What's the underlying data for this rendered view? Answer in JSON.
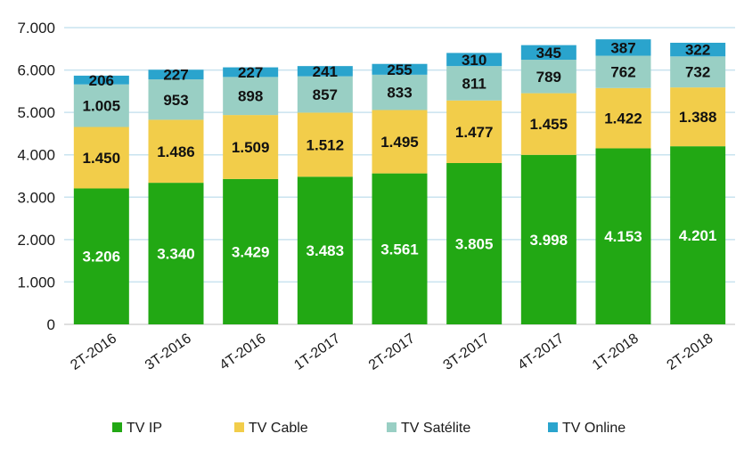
{
  "chart_data": {
    "type": "bar",
    "stacked": true,
    "categories": [
      "2T-2016",
      "3T-2016",
      "4T-2016",
      "1T-2017",
      "2T-2017",
      "3T-2017",
      "4T-2017",
      "1T-2018",
      "2T-2018"
    ],
    "series": [
      {
        "name": "TV IP",
        "color": "#22a814",
        "values": [
          3206,
          3340,
          3429,
          3483,
          3561,
          3805,
          3998,
          4153,
          4201
        ],
        "labels": [
          "3.206",
          "3.340",
          "3.429",
          "3.483",
          "3.561",
          "3.805",
          "3.998",
          "4.153",
          "4.201"
        ],
        "label_color": "#ffffff"
      },
      {
        "name": "TV Cable",
        "color": "#f2cd4a",
        "values": [
          1450,
          1486,
          1509,
          1512,
          1495,
          1477,
          1455,
          1422,
          1388
        ],
        "labels": [
          "1.450",
          "1.486",
          "1.509",
          "1.512",
          "1.495",
          "1.477",
          "1.455",
          "1.422",
          "1.388"
        ],
        "label_color": "#111111"
      },
      {
        "name": "TV Satélite",
        "color": "#99cfc4",
        "values": [
          1005,
          953,
          898,
          857,
          833,
          811,
          789,
          762,
          732
        ],
        "labels": [
          "1.005",
          "953",
          "898",
          "857",
          "833",
          "811",
          "789",
          "762",
          "732"
        ],
        "label_color": "#111111"
      },
      {
        "name": "TV Online",
        "color": "#2aa4cd",
        "values": [
          206,
          227,
          227,
          241,
          255,
          310,
          345,
          387,
          322
        ],
        "labels": [
          "206",
          "227",
          "227",
          "241",
          "255",
          "310",
          "345",
          "387",
          "322"
        ],
        "label_color": "#111111"
      }
    ],
    "ylim": [
      0,
      7000
    ],
    "yticks": [
      0,
      1000,
      2000,
      3000,
      4000,
      5000,
      6000,
      7000
    ],
    "ytick_labels": [
      "0",
      "1.000",
      "2.000",
      "3.000",
      "4.000",
      "5.000",
      "6.000",
      "7.000"
    ],
    "grid": true,
    "legend_position": "bottom",
    "title": "",
    "xlabel": "",
    "ylabel": ""
  }
}
